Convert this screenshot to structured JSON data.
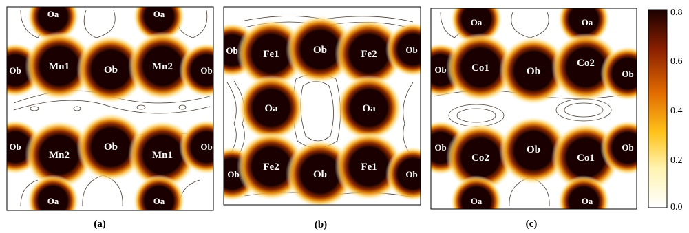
{
  "figure": {
    "panels": [
      {
        "label": "(a)",
        "atoms": [
          {
            "name": "oa-top-left",
            "text": "Oa",
            "size": "small"
          },
          {
            "name": "oa-top-right",
            "text": "Oa",
            "size": "small"
          },
          {
            "name": "ob-left-edge",
            "text": "Ob",
            "size": "small"
          },
          {
            "name": "mn1-upper",
            "text": "Mn1",
            "size": "big"
          },
          {
            "name": "ob-upper-center",
            "text": "Ob",
            "size": "big"
          },
          {
            "name": "mn2-upper",
            "text": "Mn2",
            "size": "big"
          },
          {
            "name": "ob-right-edge",
            "text": "Ob",
            "size": "small"
          },
          {
            "name": "ob-lower-left-edge",
            "text": "Ob",
            "size": "small"
          },
          {
            "name": "mn2-lower",
            "text": "Mn2",
            "size": "big"
          },
          {
            "name": "ob-lower-center",
            "text": "Ob",
            "size": "big"
          },
          {
            "name": "mn1-lower",
            "text": "Mn1",
            "size": "big"
          },
          {
            "name": "ob-lower-right-edge",
            "text": "Ob",
            "size": "small"
          },
          {
            "name": "oa-bottom-left",
            "text": "Oa",
            "size": "small"
          },
          {
            "name": "oa-bottom-right",
            "text": "Oa",
            "size": "small"
          }
        ]
      },
      {
        "label": "(b)",
        "atoms": [
          {
            "name": "ob-left-edge",
            "text": "Ob",
            "size": "small"
          },
          {
            "name": "fe1-upper",
            "text": "Fe1",
            "size": "big"
          },
          {
            "name": "ob-upper-center",
            "text": "Ob",
            "size": "big"
          },
          {
            "name": "fe2-upper",
            "text": "Fe2",
            "size": "big"
          },
          {
            "name": "ob-right-edge",
            "text": "Ob",
            "size": "small"
          },
          {
            "name": "oa-middle-left",
            "text": "Oa",
            "size": "big"
          },
          {
            "name": "oa-middle-right",
            "text": "Oa",
            "size": "big"
          },
          {
            "name": "ob-lower-left-edge",
            "text": "Ob",
            "size": "small"
          },
          {
            "name": "fe2-lower",
            "text": "Fe2",
            "size": "big"
          },
          {
            "name": "ob-lower-center",
            "text": "Ob",
            "size": "big"
          },
          {
            "name": "fe1-lower",
            "text": "Fe1",
            "size": "big"
          },
          {
            "name": "ob-lower-right-edge",
            "text": "Ob",
            "size": "small"
          }
        ]
      },
      {
        "label": "(c)",
        "atoms": [
          {
            "name": "oa-top-left",
            "text": "Oa",
            "size": "small"
          },
          {
            "name": "oa-top-right",
            "text": "Oa",
            "size": "small"
          },
          {
            "name": "ob-left-edge",
            "text": "Ob",
            "size": "small"
          },
          {
            "name": "co1-upper",
            "text": "Co1",
            "size": "big"
          },
          {
            "name": "ob-upper-center",
            "text": "Ob",
            "size": "big"
          },
          {
            "name": "co2-upper",
            "text": "Co2",
            "size": "big"
          },
          {
            "name": "ob-right-edge",
            "text": "Ob",
            "size": "small"
          },
          {
            "name": "ob-lower-left-edge",
            "text": "Ob",
            "size": "small"
          },
          {
            "name": "co2-lower",
            "text": "Co2",
            "size": "big"
          },
          {
            "name": "ob-lower-center",
            "text": "Ob",
            "size": "big"
          },
          {
            "name": "co1-lower",
            "text": "Co1",
            "size": "big"
          },
          {
            "name": "ob-lower-right-edge",
            "text": "Ob",
            "size": "small"
          },
          {
            "name": "oa-bottom-left",
            "text": "Oa",
            "size": "small"
          },
          {
            "name": "oa-bottom-right",
            "text": "Oa",
            "size": "small"
          }
        ]
      }
    ],
    "colorbar": {
      "ticks": [
        "0.8",
        "0.6",
        "0.4",
        "0.2",
        "0.0"
      ],
      "stops": [
        "#ffffff",
        "#fff3b0",
        "#ffc21a",
        "#e26b00",
        "#8a1f00",
        "#1a0000"
      ]
    }
  }
}
